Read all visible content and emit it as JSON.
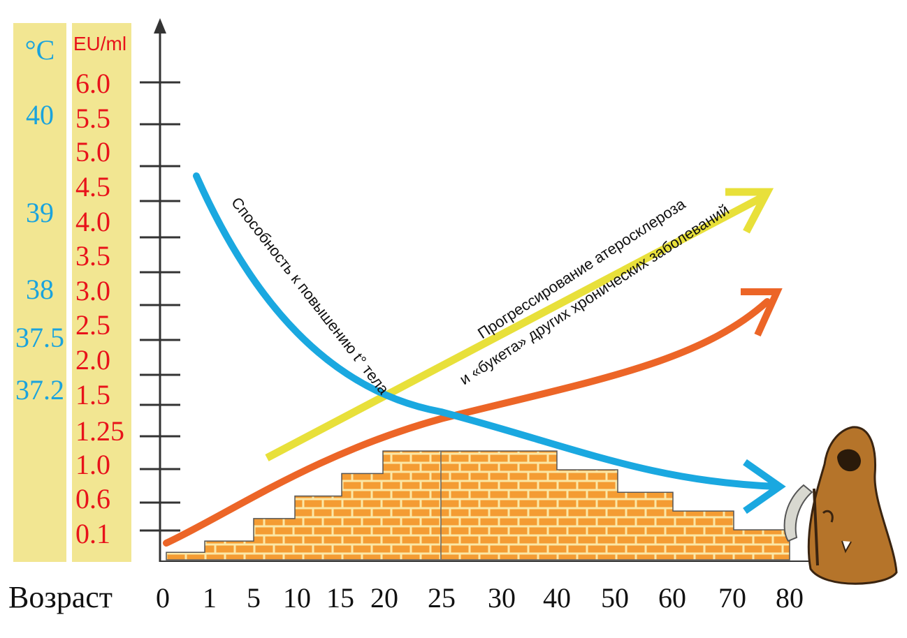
{
  "chart_data": {
    "type": "line",
    "xlabel": "Возраст",
    "categories": [
      "0",
      "1",
      "5",
      "10",
      "15",
      "20",
      "25",
      "30",
      "40",
      "50",
      "60",
      "70",
      "80"
    ],
    "temp_axis": {
      "unit": "°C",
      "ticks": [
        "40",
        "39",
        "38",
        "37.5",
        "37.2"
      ]
    },
    "eu_axis": {
      "unit": "EU/ml",
      "ticks": [
        "6.0",
        "5.5",
        "5.0",
        "4.5",
        "4.0",
        "3.5",
        "3.0",
        "2.5",
        "2.0",
        "1.5",
        "1.25",
        "1.0",
        "0.6",
        "0.1"
      ]
    },
    "series": [
      {
        "name": "Способность к повышению t° тела",
        "color": "#1aa8e0",
        "shape": "decreasing",
        "start": {
          "x": "1",
          "y": "4.5"
        },
        "end": {
          "x": "80",
          "y": "0.6"
        }
      },
      {
        "name": "Прогрессирование атеросклероза и «букета» других хронических заболеваний",
        "color": "#e8e03a",
        "shape": "increasing",
        "start": {
          "x": "5",
          "y": "1.0"
        },
        "end": {
          "x": "80",
          "y": "4.0"
        }
      },
      {
        "name": "",
        "color": "#ec6527",
        "shape": "increasing",
        "start": {
          "x": "0",
          "y": "0.1"
        },
        "end": {
          "x": "80",
          "y": "3.0"
        }
      }
    ],
    "bars": {
      "description_type": "brick stepped area",
      "values": [
        0.1,
        0.25,
        0.55,
        0.85,
        1.15,
        1.45,
        1.45,
        1.45,
        1.2,
        0.9,
        0.65,
        0.4,
        0.2
      ],
      "color": "#f49c33"
    },
    "annotations": [
      "Способность к повышению t° тела",
      "Прогрессирование атеросклероза",
      "и «букета» других хронических заболеваний"
    ],
    "grid": false
  },
  "colors": {
    "panel": "#f2e692",
    "temp": "#1aa3dd",
    "eu": "#e8121a",
    "blue_curve": "#1aa8e0",
    "yellow_curve": "#e8e03a",
    "orange_curve": "#ec6527",
    "brick": "#f49c33",
    "mortar": "#fbe7a6"
  },
  "icons": {
    "reaper": "grim-reaper-icon"
  }
}
